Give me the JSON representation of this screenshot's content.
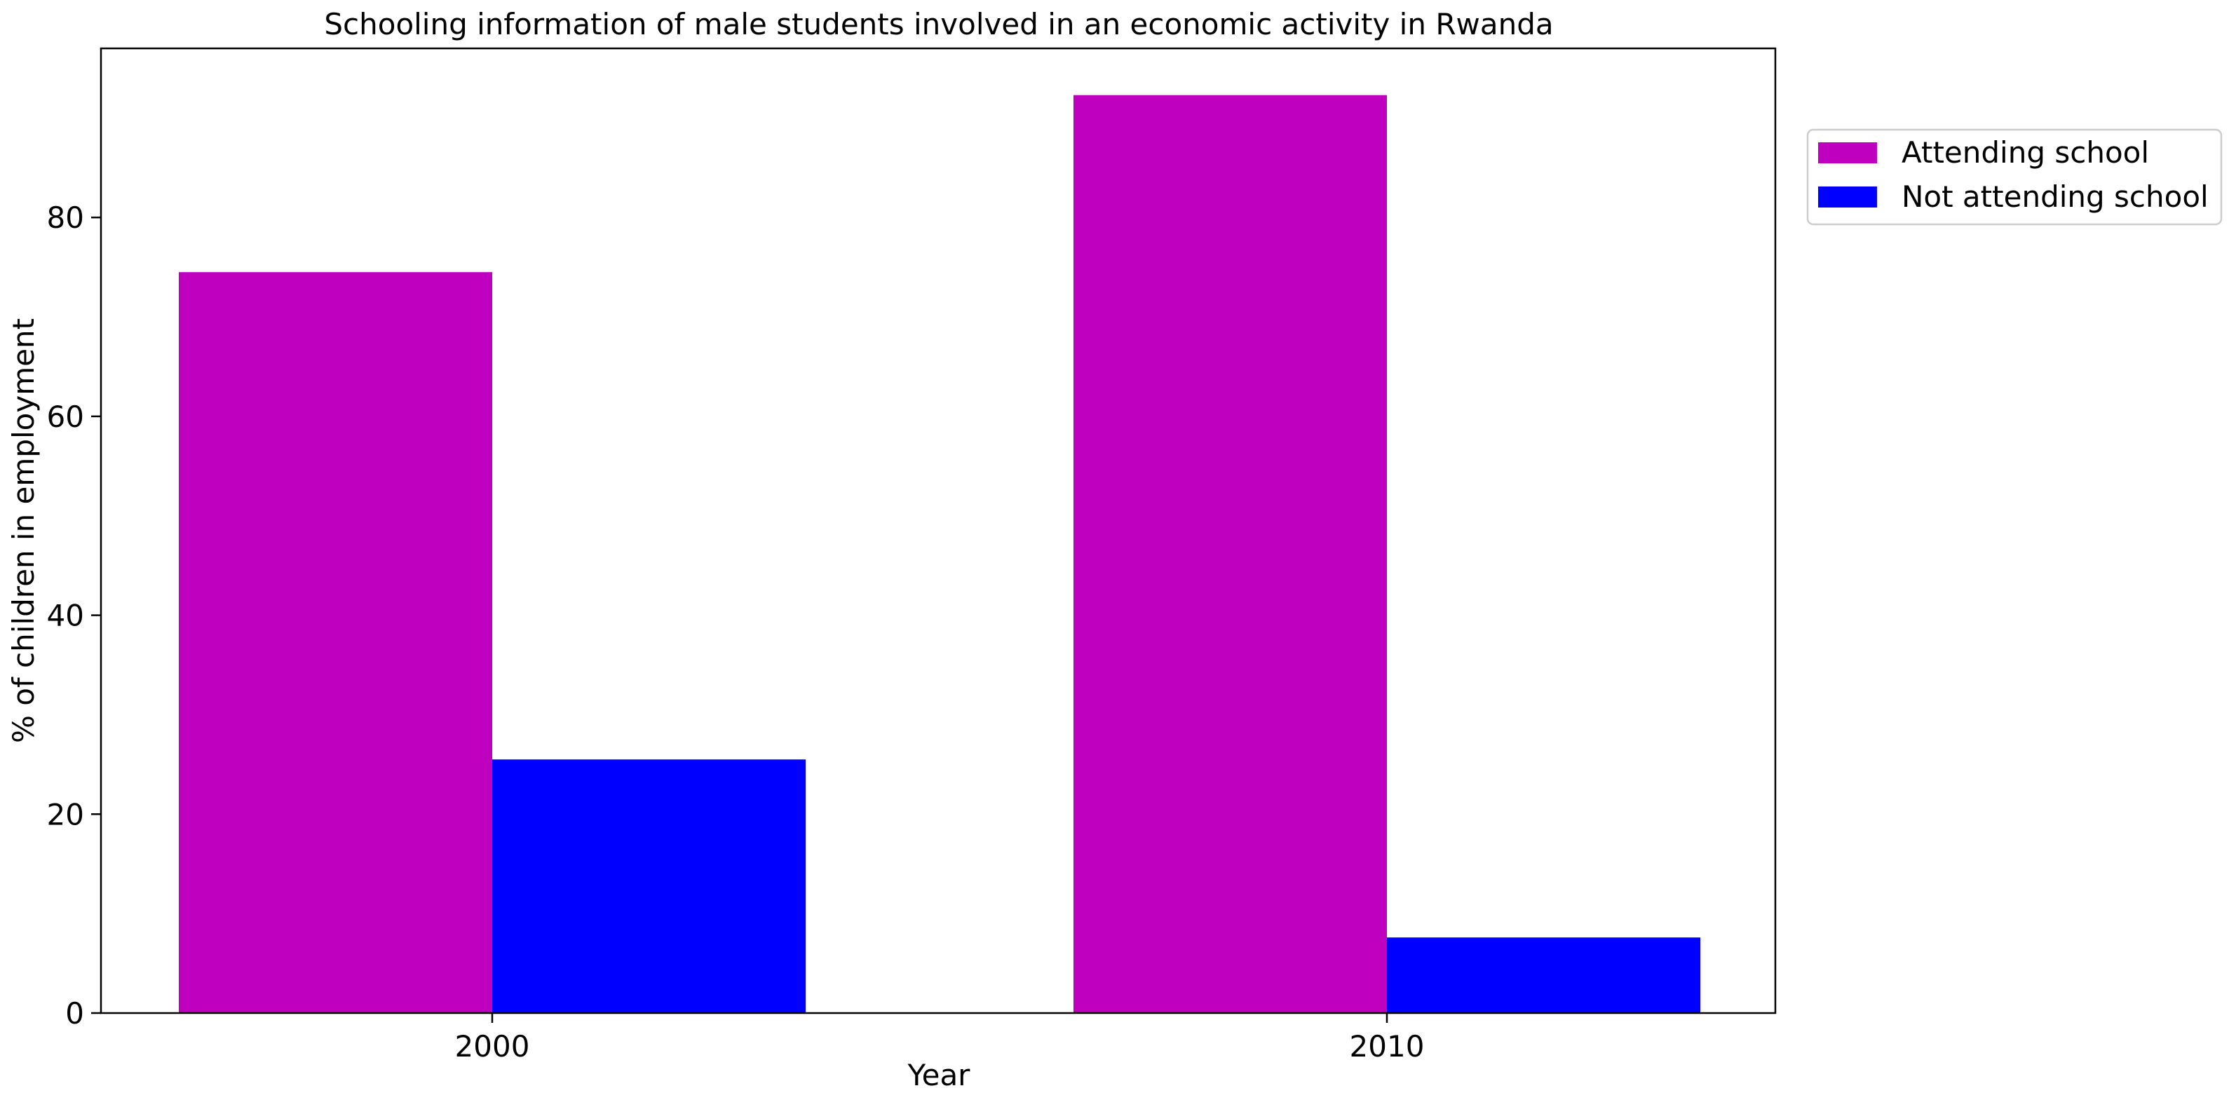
{
  "chart_data": {
    "type": "bar",
    "title": "Schooling information of male students involved in an economic activity in Rwanda",
    "xlabel": "Year",
    "ylabel": "% of children in employment",
    "categories": [
      "2000",
      "2010"
    ],
    "series": [
      {
        "name": "Attending school",
        "color": "#bf00bf",
        "values": [
          74.5,
          92.3
        ]
      },
      {
        "name": "Not attending school",
        "color": "#0000ff",
        "values": [
          25.5,
          7.6
        ]
      }
    ],
    "ylim": [
      0,
      97
    ],
    "yticks": [
      "0",
      "20",
      "40",
      "60",
      "80"
    ],
    "grid": false,
    "legend_position": "outside top-right"
  }
}
